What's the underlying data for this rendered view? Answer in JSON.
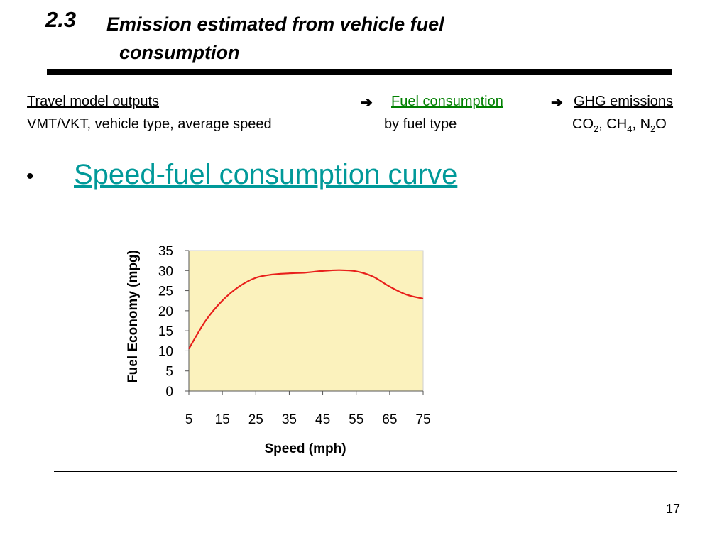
{
  "slide": {
    "section_number": "2.3",
    "title_line1": "Emission estimated from vehicle fuel",
    "title_line2": "consumption",
    "page_number": "17"
  },
  "flow": {
    "col1_label": "Travel model outputs",
    "col1_detail": "VMT/VKT, vehicle type, average speed",
    "col2_label": "Fuel consumption",
    "col2_detail": "by fuel type",
    "col3_label": "GHG emissions",
    "col3_detail_parts": [
      "CO",
      "2",
      ", CH",
      "4",
      ", N",
      "2",
      "O"
    ],
    "arrow_icon": "arrow-right-icon"
  },
  "bullet": {
    "link_text": "Speed-fuel consumption curve"
  },
  "chart_data": {
    "type": "line",
    "xlabel": "Speed (mph)",
    "ylabel": "Fuel Economy (mpg)",
    "xticks": [
      5,
      15,
      25,
      35,
      45,
      55,
      65,
      75
    ],
    "yticks": [
      0,
      5,
      10,
      15,
      20,
      25,
      30,
      35
    ],
    "xlim": [
      5,
      75
    ],
    "ylim": [
      0,
      35
    ],
    "grid": false,
    "series": [
      {
        "x": [
          5,
          10,
          15,
          20,
          25,
          30,
          35,
          40,
          45,
          50,
          55,
          60,
          65,
          70,
          75
        ],
        "values": [
          10.5,
          17.5,
          22.5,
          26,
          28.2,
          29.0,
          29.3,
          29.5,
          29.9,
          30.1,
          29.8,
          28.5,
          26,
          24,
          23
        ]
      }
    ],
    "colors": {
      "plot_bg": "#fbf2bd",
      "line": "#e8201b"
    }
  }
}
